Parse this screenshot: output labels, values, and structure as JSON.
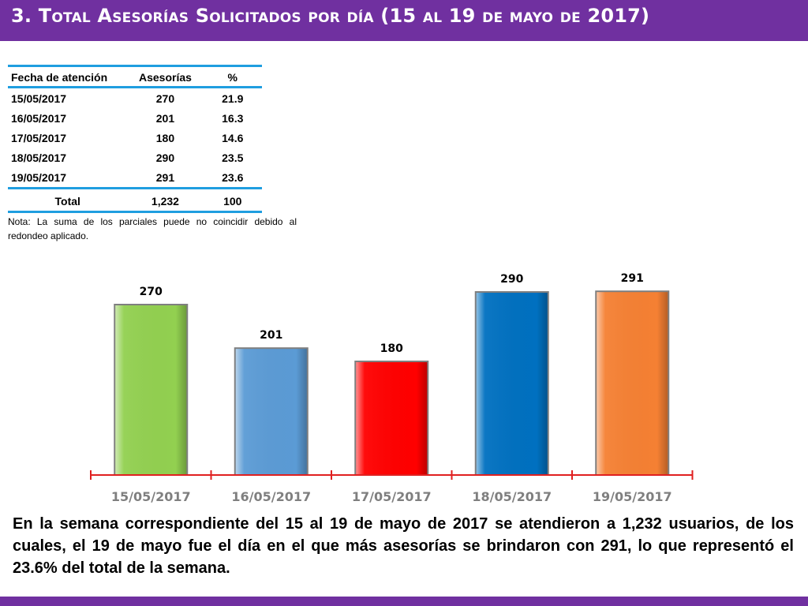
{
  "header": {
    "title": "3.  Total Asesorías Solicitados por día  (15 al 19 de mayo de 2017)"
  },
  "table": {
    "headers": [
      "Fecha de atención",
      "Asesorías",
      "%"
    ],
    "rows": [
      {
        "date": "15/05/2017",
        "count": "270",
        "pct": "21.9"
      },
      {
        "date": "16/05/2017",
        "count": "201",
        "pct": "16.3"
      },
      {
        "date": "17/05/2017",
        "count": "180",
        "pct": "14.6"
      },
      {
        "date": "18/05/2017",
        "count": "290",
        "pct": "23.5"
      },
      {
        "date": "19/05/2017",
        "count": "291",
        "pct": "23.6"
      }
    ],
    "total": {
      "label": "Total",
      "count": "1,232",
      "pct": "100"
    }
  },
  "note": "Nota: La suma de los parciales puede no coincidir debido al redondeo aplicado.",
  "chart_data": {
    "type": "bar",
    "title": "",
    "xlabel": "",
    "ylabel": "",
    "categories": [
      "15/05/2017",
      "16/05/2017",
      "17/05/2017",
      "18/05/2017",
      "19/05/2017"
    ],
    "values": [
      270,
      201,
      180,
      290,
      291
    ],
    "colors": [
      "#92d050",
      "#5b9bd5",
      "#ff0000",
      "#0070c0",
      "#f58033"
    ],
    "ylim": [
      0,
      300
    ],
    "grid": false,
    "legend": "none"
  },
  "colors": {
    "header_bar": "#7030a0",
    "table_rule": "#1f9ee0",
    "axis": "#e02020"
  },
  "summary": "En la semana correspondiente del 15 al 19 de mayo de 2017 se atendieron a 1,232 usuarios, de los cuales, el 19 de mayo fue el día en el que más asesorías se brindaron con 291, lo que representó el 23.6% del total de la semana."
}
